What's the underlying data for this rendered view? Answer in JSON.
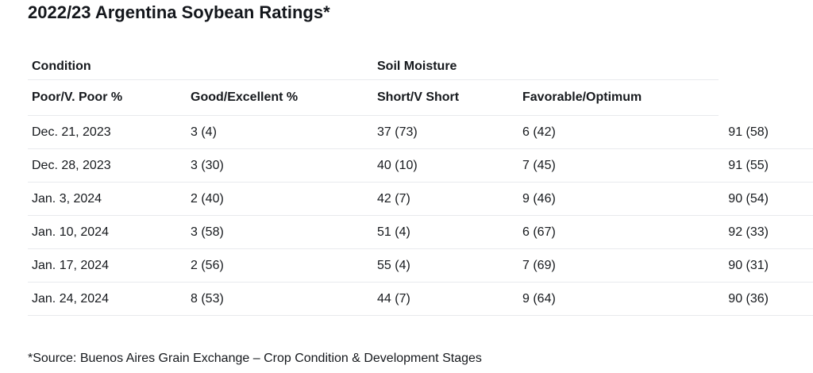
{
  "title": "2022/23 Argentina Soybean Ratings*",
  "table": {
    "group_headers": [
      "Condition",
      "Soil Moisture"
    ],
    "sub_headers": [
      "Poor/V. Poor %",
      "Good/Excellent %",
      "Short/V Short",
      "Favorable/Optimum"
    ],
    "rows": [
      [
        "Dec. 21, 2023",
        "3 (4)",
        "37 (73)",
        "6 (42)",
        "91 (58)"
      ],
      [
        "Dec. 28, 2023",
        "3 (30)",
        "40 (10)",
        "7 (45)",
        "91 (55)"
      ],
      [
        "Jan. 3, 2024",
        "2 (40)",
        "42 (7)",
        "9 (46)",
        "90 (54)"
      ],
      [
        "Jan. 10, 2024",
        "3 (58)",
        "51 (4)",
        "6 (67)",
        "92 (33)"
      ],
      [
        "Jan. 17, 2024",
        "2 (56)",
        "55 (4)",
        "7 (69)",
        "90 (31)"
      ],
      [
        "Jan. 24, 2024",
        "8 (53)",
        "44 (7)",
        "9 (64)",
        "90 (36)"
      ]
    ]
  },
  "footnote": "*Source: Buenos Aires Grain Exchange – Crop Condition & Development Stages",
  "colors": {
    "background": "#ffffff",
    "text": "#16191d",
    "rule": "#e8eaed"
  },
  "chart_data": {
    "type": "table",
    "title": "2022/23 Argentina Soybean Ratings*",
    "column_groups": [
      {
        "label": "Condition",
        "span": 2
      },
      {
        "label": "Soil Moisture",
        "span": 2
      }
    ],
    "columns": [
      "Poor/V. Poor %",
      "Good/Excellent %",
      "Short/V Short",
      "Favorable/Optimum"
    ],
    "rows": [
      {
        "date": "Dec. 21, 2023",
        "values": [
          "3 (4)",
          "37 (73)",
          "6 (42)",
          "91 (58)"
        ]
      },
      {
        "date": "Dec. 28, 2023",
        "values": [
          "3 (30)",
          "40 (10)",
          "7 (45)",
          "91 (55)"
        ]
      },
      {
        "date": "Jan. 3, 2024",
        "values": [
          "2 (40)",
          "42 (7)",
          "9 (46)",
          "90 (54)"
        ]
      },
      {
        "date": "Jan. 10, 2024",
        "values": [
          "3 (58)",
          "51 (4)",
          "6 (67)",
          "92 (33)"
        ]
      },
      {
        "date": "Jan. 17, 2024",
        "values": [
          "2 (56)",
          "55 (4)",
          "7 (69)",
          "90 (31)"
        ]
      },
      {
        "date": "Jan. 24, 2024",
        "values": [
          "8 (53)",
          "44 (7)",
          "9 (64)",
          "90 (36)"
        ]
      }
    ],
    "footnote": "*Source: Buenos Aires Grain Exchange – Crop Condition & Development Stages"
  }
}
